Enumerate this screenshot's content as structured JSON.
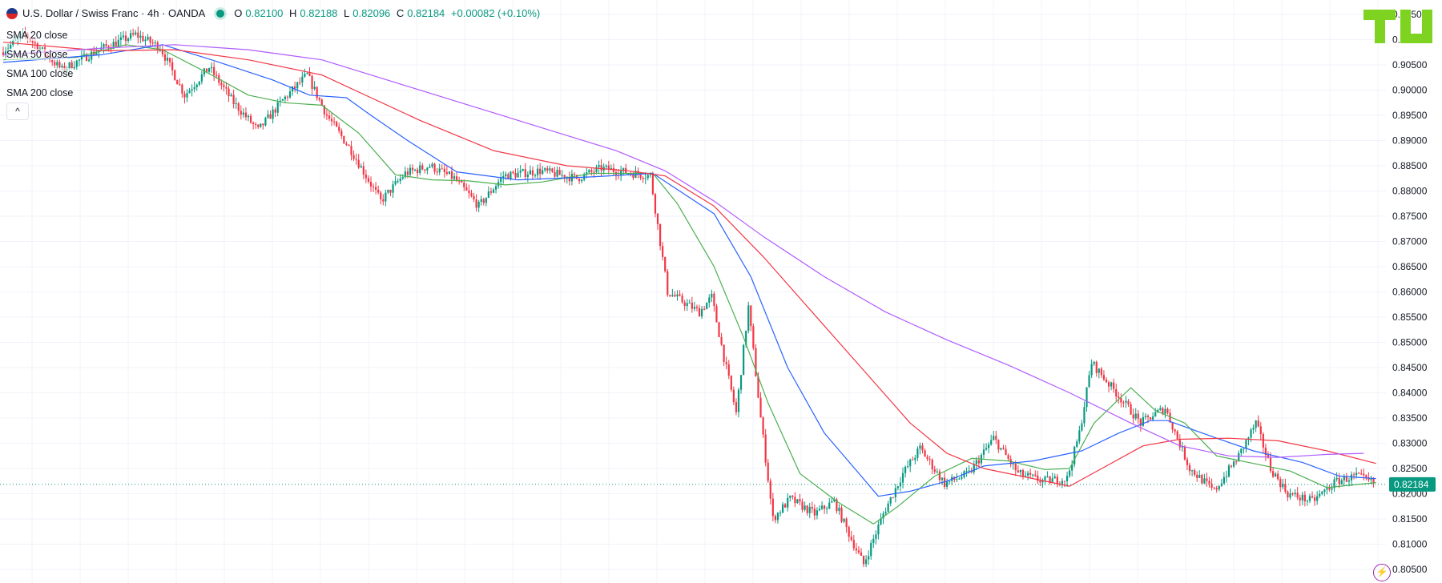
{
  "header": {
    "symbol": "U.S. Dollar / Swiss Franc · 4h · OANDA",
    "open_label": "O",
    "open": "0.82100",
    "high_label": "H",
    "high": "0.82188",
    "low_label": "L",
    "low": "0.82096",
    "close_label": "C",
    "close": "0.82184",
    "change": "+0.00082 (+0.10%)"
  },
  "indicators": [
    {
      "label": "SMA 20 close",
      "color": "#4caf50"
    },
    {
      "label": "SMA 50 close",
      "color": "#2962ff"
    },
    {
      "label": "SMA 100 close",
      "color": "#f23645"
    },
    {
      "label": "SMA 200 close",
      "color": "#b05bff"
    }
  ],
  "collapse_label": "^",
  "current_price_label": "0.82184",
  "colors": {
    "up": "#089981",
    "down": "#f23645",
    "grid": "#f0f3fa",
    "axis_text": "#131722",
    "logo": "#7ed321"
  },
  "chart_data": {
    "type": "candlestick",
    "title": "U.S. Dollar / Swiss Franc · 4h · OANDA",
    "ylim": [
      0.8045,
      0.9155
    ],
    "y_ticks": [
      "0.91500",
      "0.91000",
      "0.90500",
      "0.90000",
      "0.89500",
      "0.89000",
      "0.88500",
      "0.88000",
      "0.87500",
      "0.87000",
      "0.86500",
      "0.86000",
      "0.85500",
      "0.85000",
      "0.84500",
      "0.84000",
      "0.83500",
      "0.83000",
      "0.82500",
      "0.82000",
      "0.81500",
      "0.81000",
      "0.80500"
    ],
    "last_price": 0.82184,
    "price_path": [
      [
        0,
        0.9075
      ],
      [
        10,
        0.911
      ],
      [
        25,
        0.904
      ],
      [
        40,
        0.908
      ],
      [
        55,
        0.911
      ],
      [
        65,
        0.9085
      ],
      [
        75,
        0.899
      ],
      [
        85,
        0.9045
      ],
      [
        95,
        0.8975
      ],
      [
        105,
        0.892
      ],
      [
        115,
        0.898
      ],
      [
        125,
        0.903
      ],
      [
        133,
        0.895
      ],
      [
        143,
        0.888
      ],
      [
        155,
        0.878
      ],
      [
        165,
        0.8835
      ],
      [
        175,
        0.885
      ],
      [
        185,
        0.8825
      ],
      [
        195,
        0.877
      ],
      [
        205,
        0.883
      ],
      [
        220,
        0.884
      ],
      [
        235,
        0.8825
      ],
      [
        245,
        0.8845
      ],
      [
        258,
        0.8835
      ],
      [
        265,
        0.883
      ],
      [
        272,
        0.86
      ],
      [
        285,
        0.856
      ],
      [
        290,
        0.859
      ],
      [
        295,
        0.847
      ],
      [
        300,
        0.836
      ],
      [
        305,
        0.857
      ],
      [
        310,
        0.835
      ],
      [
        315,
        0.815
      ],
      [
        322,
        0.819
      ],
      [
        332,
        0.816
      ],
      [
        340,
        0.8185
      ],
      [
        347,
        0.811
      ],
      [
        352,
        0.806
      ],
      [
        360,
        0.816
      ],
      [
        368,
        0.824
      ],
      [
        375,
        0.829
      ],
      [
        385,
        0.822
      ],
      [
        395,
        0.824
      ],
      [
        405,
        0.831
      ],
      [
        415,
        0.824
      ],
      [
        425,
        0.8225
      ],
      [
        435,
        0.823
      ],
      [
        440,
        0.832
      ],
      [
        445,
        0.846
      ],
      [
        455,
        0.84
      ],
      [
        465,
        0.834
      ],
      [
        475,
        0.837
      ],
      [
        485,
        0.825
      ],
      [
        495,
        0.8205
      ],
      [
        505,
        0.8275
      ],
      [
        512,
        0.834
      ],
      [
        518,
        0.825
      ],
      [
        525,
        0.82
      ],
      [
        535,
        0.8185
      ],
      [
        545,
        0.8225
      ],
      [
        553,
        0.8235
      ],
      [
        560,
        0.822
      ]
    ],
    "series": [
      {
        "name": "SMA 20 close",
        "color": "#4caf50",
        "points": [
          [
            0,
            0.906
          ],
          [
            30,
            0.9065
          ],
          [
            50,
            0.909
          ],
          [
            65,
            0.908
          ],
          [
            85,
            0.903
          ],
          [
            100,
            0.899
          ],
          [
            115,
            0.8975
          ],
          [
            130,
            0.897
          ],
          [
            145,
            0.8915
          ],
          [
            160,
            0.8832
          ],
          [
            175,
            0.8822
          ],
          [
            190,
            0.882
          ],
          [
            205,
            0.8812
          ],
          [
            220,
            0.8818
          ],
          [
            240,
            0.8835
          ],
          [
            265,
            0.8835
          ],
          [
            275,
            0.8775
          ],
          [
            290,
            0.865
          ],
          [
            302,
            0.851
          ],
          [
            312,
            0.838
          ],
          [
            325,
            0.824
          ],
          [
            340,
            0.8185
          ],
          [
            355,
            0.814
          ],
          [
            365,
            0.8175
          ],
          [
            380,
            0.8235
          ],
          [
            395,
            0.827
          ],
          [
            410,
            0.8265
          ],
          [
            425,
            0.8248
          ],
          [
            435,
            0.825
          ],
          [
            445,
            0.834
          ],
          [
            460,
            0.841
          ],
          [
            470,
            0.8365
          ],
          [
            482,
            0.834
          ],
          [
            495,
            0.8275
          ],
          [
            510,
            0.826
          ],
          [
            525,
            0.8245
          ],
          [
            540,
            0.8212
          ],
          [
            560,
            0.8222
          ]
        ]
      },
      {
        "name": "SMA 50 close",
        "color": "#2962ff",
        "points": [
          [
            0,
            0.9055
          ],
          [
            40,
            0.907
          ],
          [
            65,
            0.909
          ],
          [
            85,
            0.906
          ],
          [
            110,
            0.902
          ],
          [
            125,
            0.899
          ],
          [
            140,
            0.8985
          ],
          [
            150,
            0.895
          ],
          [
            165,
            0.89
          ],
          [
            185,
            0.8838
          ],
          [
            210,
            0.8822
          ],
          [
            240,
            0.8828
          ],
          [
            265,
            0.8835
          ],
          [
            290,
            0.8755
          ],
          [
            305,
            0.863
          ],
          [
            320,
            0.845
          ],
          [
            335,
            0.832
          ],
          [
            350,
            0.8235
          ],
          [
            357,
            0.8195
          ],
          [
            370,
            0.8205
          ],
          [
            385,
            0.8225
          ],
          [
            400,
            0.8255
          ],
          [
            420,
            0.8265
          ],
          [
            440,
            0.8285
          ],
          [
            455,
            0.832
          ],
          [
            468,
            0.8345
          ],
          [
            475,
            0.8345
          ],
          [
            495,
            0.831
          ],
          [
            510,
            0.8285
          ],
          [
            530,
            0.8262
          ],
          [
            545,
            0.8235
          ],
          [
            560,
            0.823
          ]
        ]
      },
      {
        "name": "SMA 100 close",
        "color": "#f23645",
        "points": [
          [
            0,
            0.9095
          ],
          [
            40,
            0.9078
          ],
          [
            70,
            0.908
          ],
          [
            100,
            0.906
          ],
          [
            130,
            0.903
          ],
          [
            150,
            0.8985
          ],
          [
            170,
            0.894
          ],
          [
            200,
            0.888
          ],
          [
            230,
            0.885
          ],
          [
            255,
            0.884
          ],
          [
            270,
            0.883
          ],
          [
            290,
            0.877
          ],
          [
            310,
            0.867
          ],
          [
            330,
            0.856
          ],
          [
            350,
            0.845
          ],
          [
            370,
            0.834
          ],
          [
            385,
            0.828
          ],
          [
            400,
            0.825
          ],
          [
            420,
            0.823
          ],
          [
            435,
            0.8215
          ],
          [
            450,
            0.8255
          ],
          [
            465,
            0.8295
          ],
          [
            480,
            0.8308
          ],
          [
            500,
            0.831
          ],
          [
            520,
            0.8305
          ],
          [
            540,
            0.8285
          ],
          [
            560,
            0.826
          ]
        ]
      },
      {
        "name": "SMA 200 close",
        "color": "#b05bff",
        "points": [
          [
            0,
            0.907
          ],
          [
            40,
            0.9083
          ],
          [
            70,
            0.909
          ],
          [
            100,
            0.908
          ],
          [
            130,
            0.906
          ],
          [
            160,
            0.9015
          ],
          [
            190,
            0.897
          ],
          [
            220,
            0.8925
          ],
          [
            250,
            0.888
          ],
          [
            270,
            0.884
          ],
          [
            290,
            0.878
          ],
          [
            310,
            0.871
          ],
          [
            335,
            0.863
          ],
          [
            360,
            0.856
          ],
          [
            385,
            0.8505
          ],
          [
            410,
            0.8455
          ],
          [
            435,
            0.84
          ],
          [
            460,
            0.834
          ],
          [
            480,
            0.8295
          ],
          [
            500,
            0.8275
          ],
          [
            520,
            0.8272
          ],
          [
            540,
            0.8278
          ],
          [
            555,
            0.828
          ]
        ]
      }
    ]
  }
}
